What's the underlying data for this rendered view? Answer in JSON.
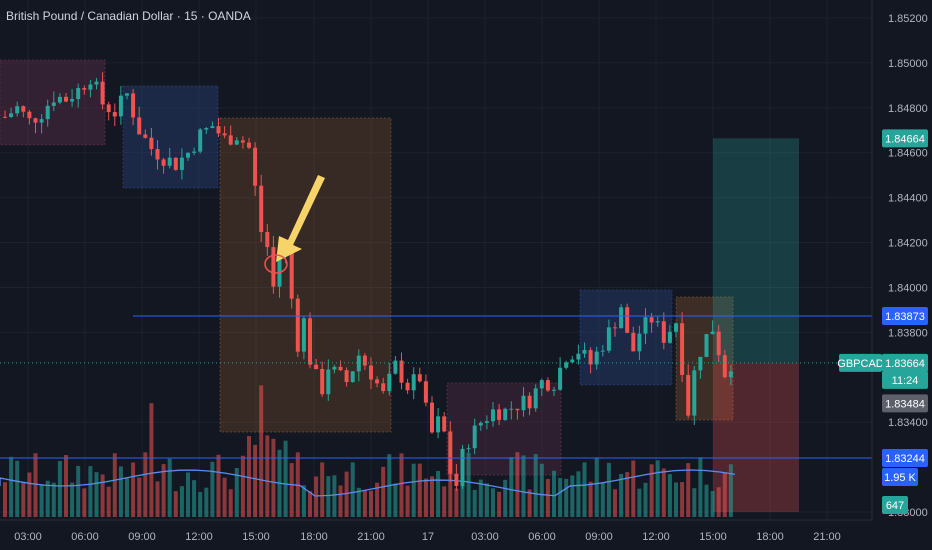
{
  "symbol_title": "British Pound / Canadian Dollar · 15 · OANDA",
  "colors": {
    "background": "#131722",
    "grid": "#1e2230",
    "up": "#26a69a",
    "down": "#ef5350",
    "blue_line": "#2962ff",
    "ma": "#5b8def",
    "arrow": "#f7d468",
    "target_zone": "#26a69a",
    "stop_zone": "#ef5350"
  },
  "chart_data": {
    "type": "candlestick",
    "x_tick_labels": [
      "03:00",
      "06:00",
      "09:00",
      "12:00",
      "15:00",
      "18:00",
      "21:00",
      "17",
      "03:00",
      "06:00",
      "09:00",
      "12:00",
      "15:00",
      "18:00",
      "21:00"
    ],
    "y_tick_labels": [
      "1.85200",
      "1.85000",
      "1.84800",
      "1.84600",
      "1.84400",
      "1.84200",
      "1.84000",
      "1.83800",
      "1.83400",
      "1.83000"
    ],
    "ylim": [
      1.8292,
      1.8526
    ],
    "price_path": [
      [
        0,
        1.8476
      ],
      [
        2,
        1.848
      ],
      [
        4,
        1.8474
      ],
      [
        6,
        1.8478
      ],
      [
        8,
        1.8485
      ],
      [
        10,
        1.8484
      ],
      [
        12,
        1.8488
      ],
      [
        14,
        1.8494
      ],
      [
        16,
        1.8482
      ],
      [
        18,
        1.8478
      ],
      [
        20,
        1.8486
      ],
      [
        22,
        1.847
      ],
      [
        24,
        1.8462
      ],
      [
        26,
        1.8458
      ],
      [
        28,
        1.8455
      ],
      [
        30,
        1.846
      ],
      [
        32,
        1.8468
      ],
      [
        34,
        1.8472
      ],
      [
        36,
        1.8466
      ],
      [
        38,
        1.8468
      ],
      [
        40,
        1.8462
      ],
      [
        41,
        1.8444
      ],
      [
        42,
        1.8425
      ],
      [
        43,
        1.8418
      ],
      [
        44,
        1.84
      ],
      [
        45,
        1.8415
      ],
      [
        46,
        1.8418
      ],
      [
        47,
        1.8395
      ],
      [
        48,
        1.8375
      ],
      [
        49,
        1.8385
      ],
      [
        50,
        1.8368
      ],
      [
        51,
        1.836
      ],
      [
        52,
        1.8355
      ],
      [
        53,
        1.8365
      ],
      [
        54,
        1.8362
      ],
      [
        56,
        1.8358
      ],
      [
        58,
        1.837
      ],
      [
        60,
        1.8362
      ],
      [
        62,
        1.8352
      ],
      [
        64,
        1.8365
      ],
      [
        66,
        1.8356
      ],
      [
        68,
        1.836
      ],
      [
        69,
        1.8345
      ],
      [
        70,
        1.8335
      ],
      [
        71,
        1.834
      ],
      [
        72,
        1.8335
      ],
      [
        73,
        1.8318
      ],
      [
        74,
        1.8312
      ],
      [
        75,
        1.8325
      ],
      [
        76,
        1.8332
      ],
      [
        78,
        1.834
      ],
      [
        80,
        1.8345
      ],
      [
        82,
        1.8345
      ],
      [
        84,
        1.8348
      ],
      [
        86,
        1.835
      ],
      [
        88,
        1.8358
      ],
      [
        90,
        1.8358
      ],
      [
        92,
        1.837
      ],
      [
        94,
        1.8372
      ],
      [
        96,
        1.8366
      ],
      [
        98,
        1.8375
      ],
      [
        100,
        1.8385
      ],
      [
        101,
        1.8392
      ],
      [
        102,
        1.8378
      ],
      [
        103,
        1.8372
      ],
      [
        104,
        1.838
      ],
      [
        106,
        1.8386
      ],
      [
        108,
        1.8378
      ],
      [
        110,
        1.8385
      ],
      [
        111,
        1.8365
      ],
      [
        112,
        1.8345
      ],
      [
        113,
        1.8362
      ],
      [
        114,
        1.8372
      ],
      [
        115,
        1.8378
      ],
      [
        116,
        1.8382
      ],
      [
        117,
        1.8372
      ],
      [
        118,
        1.8362
      ],
      [
        119,
        1.83664
      ]
    ],
    "annotations": {
      "horizontal_line_price": "1.83873",
      "lower_line_price": "1.83244",
      "stop_price": "1.83484",
      "target_price": "1.84664",
      "current_price": "1.83664"
    },
    "volume_ma_value": "1.95 K",
    "volume_value": "647"
  },
  "price_tags": {
    "target": "1.84664",
    "hline": "1.83873",
    "symbol": "GBPCAD",
    "current": "1.83664",
    "countdown": "11:24",
    "stop": "1.83484",
    "lower": "1.83244",
    "vol_ma": "1.95 K",
    "vol": "647"
  }
}
